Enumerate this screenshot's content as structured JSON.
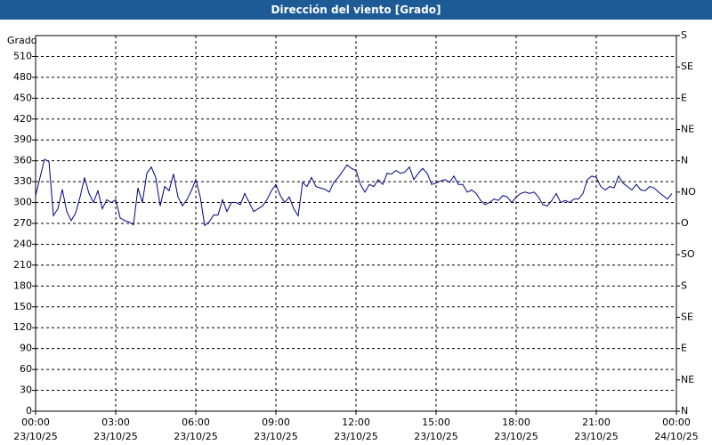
{
  "chart_data": {
    "type": "line",
    "title": "Dirección del viento [Grado]",
    "ylabel": "Grado",
    "x": [
      0,
      10,
      20,
      30,
      40,
      50,
      60,
      70,
      80,
      90,
      100,
      110,
      120,
      130,
      140,
      150,
      160,
      170,
      180,
      190,
      200,
      210,
      220,
      230,
      240,
      250,
      260,
      270,
      280,
      290,
      300,
      310,
      320,
      330,
      340,
      350,
      360,
      370,
      380,
      390,
      400,
      410,
      420,
      430,
      440,
      450,
      460,
      470,
      480,
      490,
      500,
      510,
      520,
      530,
      540,
      550,
      560,
      570,
      580,
      590,
      600,
      610,
      620,
      630,
      640,
      650,
      660,
      670,
      680,
      690,
      700,
      710,
      720,
      730,
      740,
      750,
      760,
      770,
      780,
      790,
      800,
      810,
      820,
      830,
      840,
      850,
      860,
      870,
      880,
      890,
      900,
      910,
      920,
      930,
      940,
      950,
      960,
      970,
      980,
      990,
      1000,
      1010,
      1020,
      1030,
      1040,
      1050,
      1060,
      1070,
      1080,
      1090,
      1100,
      1110,
      1120,
      1130,
      1140,
      1150,
      1160,
      1170,
      1180,
      1190,
      1200,
      1210,
      1220,
      1230,
      1240,
      1250,
      1260,
      1270,
      1280,
      1290,
      1300,
      1310,
      1320,
      1330,
      1340,
      1350,
      1360,
      1370,
      1380,
      1390,
      1400,
      1410,
      1420,
      1430
    ],
    "series": [
      {
        "name": "Dirección del viento",
        "color": "#000080",
        "values": [
          310,
          336,
          362,
          359,
          281,
          291,
          319,
          287,
          274,
          285,
          308,
          336,
          313,
          300,
          317,
          291,
          304,
          300,
          304,
          278,
          274,
          272,
          268,
          321,
          300,
          342,
          351,
          336,
          295,
          323,
          317,
          341,
          308,
          295,
          304,
          317,
          333,
          308,
          267,
          272,
          282,
          282,
          304,
          287,
          300,
          300,
          297,
          313,
          300,
          287,
          291,
          295,
          304,
          317,
          326,
          310,
          300,
          308,
          291,
          281,
          329,
          323,
          336,
          323,
          321,
          319,
          315,
          329,
          336,
          345,
          354,
          349,
          346,
          326,
          315,
          326,
          323,
          333,
          326,
          342,
          341,
          346,
          342,
          344,
          351,
          333,
          342,
          349,
          342,
          326,
          328,
          331,
          333,
          329,
          338,
          326,
          326,
          315,
          318,
          313,
          303,
          297,
          300,
          305,
          303,
          310,
          308,
          300,
          308,
          313,
          315,
          313,
          315,
          308,
          297,
          295,
          303,
          313,
          300,
          303,
          300,
          305,
          305,
          313,
          333,
          338,
          336,
          323,
          318,
          323,
          321,
          338,
          328,
          323,
          318,
          326,
          318,
          317,
          323,
          321,
          315,
          310,
          305,
          313
        ]
      }
    ],
    "xlim": [
      0,
      1440
    ],
    "xticks": [
      {
        "value": 0,
        "label": [
          "00:00",
          "23/10/25"
        ]
      },
      {
        "value": 180,
        "label": [
          "03:00",
          "23/10/25"
        ]
      },
      {
        "value": 360,
        "label": [
          "06:00",
          "23/10/25"
        ]
      },
      {
        "value": 540,
        "label": [
          "09:00",
          "23/10/25"
        ]
      },
      {
        "value": 720,
        "label": [
          "12:00",
          "23/10/25"
        ]
      },
      {
        "value": 900,
        "label": [
          "15:00",
          "23/10/25"
        ]
      },
      {
        "value": 1080,
        "label": [
          "18:00",
          "23/10/25"
        ]
      },
      {
        "value": 1260,
        "label": [
          "21:00",
          "23/10/25"
        ]
      },
      {
        "value": 1440,
        "label": [
          "00:00",
          "24/10/25"
        ]
      }
    ],
    "ylim": [
      0,
      540
    ],
    "yticks": [
      0,
      30,
      60,
      90,
      120,
      150,
      180,
      210,
      240,
      270,
      300,
      330,
      360,
      390,
      420,
      450,
      480,
      510
    ],
    "y2lim": [
      0,
      540
    ],
    "y2ticks": [
      {
        "value": 0,
        "label": "N"
      },
      {
        "value": 45,
        "label": "NE"
      },
      {
        "value": 90,
        "label": "E"
      },
      {
        "value": 135,
        "label": "SE"
      },
      {
        "value": 180,
        "label": "S"
      },
      {
        "value": 225,
        "label": "SO"
      },
      {
        "value": 270,
        "label": "O"
      },
      {
        "value": 315,
        "label": "NO"
      },
      {
        "value": 360,
        "label": "N"
      },
      {
        "value": 405,
        "label": "NE"
      },
      {
        "value": 450,
        "label": "E"
      },
      {
        "value": 495,
        "label": "SE"
      },
      {
        "value": 540,
        "label": "S"
      }
    ],
    "grid": true
  }
}
